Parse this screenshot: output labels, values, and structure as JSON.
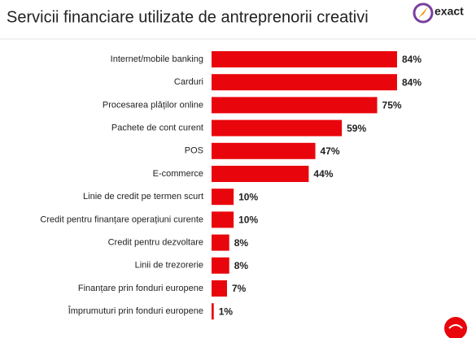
{
  "chart_data": {
    "type": "bar",
    "orientation": "horizontal",
    "title": "Servicii financiare utilizate de antreprenorii creativi",
    "logo": "exact",
    "categories": [
      "Internet/mobile banking",
      "Carduri",
      "Procesarea plăților online",
      "Pachete de cont curent",
      "POS",
      "E-commerce",
      "Linie de credit pe termen scurt",
      "Credit pentru finanțare operațiuni curente",
      "Credit pentru dezvoltare",
      "Linii de trezorerie",
      "Finanțare prin fonduri europene",
      "Împrumuturi prin fonduri europene"
    ],
    "values": [
      84,
      84,
      75,
      59,
      47,
      44,
      10,
      10,
      8,
      8,
      7,
      1
    ],
    "value_labels": [
      "84%",
      "84%",
      "75%",
      "59%",
      "47%",
      "44%",
      "10%",
      "10%",
      "8%",
      "8%",
      "7%",
      "1%"
    ],
    "color": "#e8060c"
  }
}
